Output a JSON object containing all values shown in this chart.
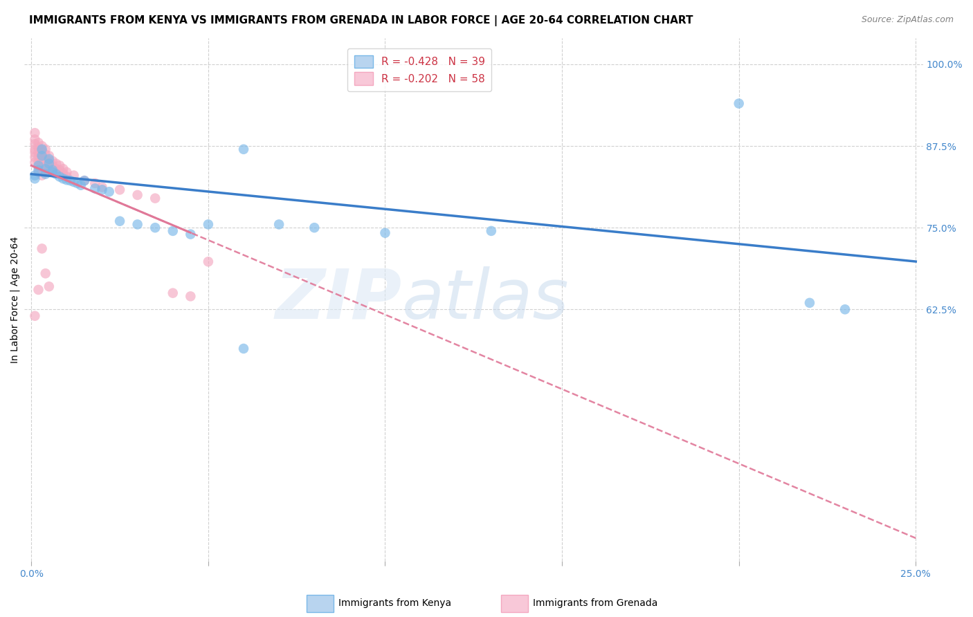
{
  "title": "IMMIGRANTS FROM KENYA VS IMMIGRANTS FROM GRENADA IN LABOR FORCE | AGE 20-64 CORRELATION CHART",
  "source": "Source: ZipAtlas.com",
  "xlabel": "",
  "ylabel": "In Labor Force | Age 20-64",
  "xlim": [
    -0.002,
    0.252
  ],
  "ylim": [
    0.24,
    1.04
  ],
  "xticks": [
    0.0,
    0.05,
    0.1,
    0.15,
    0.2,
    0.25
  ],
  "xticklabels": [
    "0.0%",
    "",
    "",
    "",
    "",
    "25.0%"
  ],
  "yticks_right": [
    1.0,
    0.875,
    0.75,
    0.625
  ],
  "yticklabels_right": [
    "100.0%",
    "87.5%",
    "75.0%",
    "62.5%"
  ],
  "watermark": "ZIPatlas",
  "legend_label_kenya": "R = -0.428   N = 39",
  "legend_label_grenada": "R = -0.202   N = 58",
  "kenya_scatter_color": "#7ab8e8",
  "grenada_scatter_color": "#f4a8c0",
  "kenya_line_color": "#3a7dc9",
  "grenada_line_color": "#e07898",
  "grid_color": "#d0d0d0",
  "bg_color": "#ffffff",
  "title_fontsize": 11,
  "axis_label_fontsize": 10,
  "tick_fontsize": 10,
  "legend_fontsize": 11,
  "kenya_scatter": [
    [
      0.001,
      0.83
    ],
    [
      0.001,
      0.825
    ],
    [
      0.002,
      0.845
    ],
    [
      0.002,
      0.838
    ],
    [
      0.003,
      0.87
    ],
    [
      0.003,
      0.86
    ],
    [
      0.004,
      0.84
    ],
    [
      0.004,
      0.832
    ],
    [
      0.005,
      0.855
    ],
    [
      0.005,
      0.848
    ],
    [
      0.006,
      0.838
    ],
    [
      0.006,
      0.835
    ],
    [
      0.007,
      0.832
    ],
    [
      0.008,
      0.828
    ],
    [
      0.009,
      0.825
    ],
    [
      0.01,
      0.823
    ],
    [
      0.011,
      0.822
    ],
    [
      0.012,
      0.82
    ],
    [
      0.013,
      0.818
    ],
    [
      0.014,
      0.815
    ],
    [
      0.015,
      0.822
    ],
    [
      0.018,
      0.81
    ],
    [
      0.02,
      0.808
    ],
    [
      0.022,
      0.805
    ],
    [
      0.025,
      0.76
    ],
    [
      0.03,
      0.755
    ],
    [
      0.035,
      0.75
    ],
    [
      0.04,
      0.745
    ],
    [
      0.045,
      0.74
    ],
    [
      0.05,
      0.755
    ],
    [
      0.06,
      0.87
    ],
    [
      0.07,
      0.755
    ],
    [
      0.08,
      0.75
    ],
    [
      0.1,
      0.742
    ],
    [
      0.13,
      0.745
    ],
    [
      0.2,
      0.94
    ],
    [
      0.22,
      0.635
    ],
    [
      0.23,
      0.625
    ],
    [
      0.06,
      0.565
    ]
  ],
  "grenada_scatter": [
    [
      0.001,
      0.895
    ],
    [
      0.001,
      0.885
    ],
    [
      0.001,
      0.878
    ],
    [
      0.001,
      0.87
    ],
    [
      0.001,
      0.865
    ],
    [
      0.001,
      0.858
    ],
    [
      0.001,
      0.85
    ],
    [
      0.001,
      0.615
    ],
    [
      0.002,
      0.88
    ],
    [
      0.002,
      0.872
    ],
    [
      0.002,
      0.865
    ],
    [
      0.002,
      0.858
    ],
    [
      0.002,
      0.85
    ],
    [
      0.002,
      0.843
    ],
    [
      0.002,
      0.835
    ],
    [
      0.003,
      0.875
    ],
    [
      0.003,
      0.868
    ],
    [
      0.003,
      0.86
    ],
    [
      0.003,
      0.852
    ],
    [
      0.003,
      0.845
    ],
    [
      0.003,
      0.838
    ],
    [
      0.003,
      0.83
    ],
    [
      0.004,
      0.87
    ],
    [
      0.004,
      0.862
    ],
    [
      0.004,
      0.855
    ],
    [
      0.004,
      0.848
    ],
    [
      0.004,
      0.84
    ],
    [
      0.004,
      0.835
    ],
    [
      0.005,
      0.86
    ],
    [
      0.005,
      0.852
    ],
    [
      0.005,
      0.845
    ],
    [
      0.005,
      0.838
    ],
    [
      0.006,
      0.852
    ],
    [
      0.006,
      0.845
    ],
    [
      0.006,
      0.838
    ],
    [
      0.007,
      0.848
    ],
    [
      0.007,
      0.84
    ],
    [
      0.007,
      0.835
    ],
    [
      0.008,
      0.845
    ],
    [
      0.008,
      0.838
    ],
    [
      0.009,
      0.84
    ],
    [
      0.009,
      0.833
    ],
    [
      0.01,
      0.835
    ],
    [
      0.01,
      0.828
    ],
    [
      0.012,
      0.83
    ],
    [
      0.015,
      0.822
    ],
    [
      0.018,
      0.818
    ],
    [
      0.02,
      0.812
    ],
    [
      0.025,
      0.808
    ],
    [
      0.03,
      0.8
    ],
    [
      0.035,
      0.795
    ],
    [
      0.04,
      0.65
    ],
    [
      0.045,
      0.645
    ],
    [
      0.05,
      0.698
    ],
    [
      0.003,
      0.718
    ],
    [
      0.004,
      0.68
    ],
    [
      0.005,
      0.66
    ],
    [
      0.002,
      0.655
    ]
  ]
}
